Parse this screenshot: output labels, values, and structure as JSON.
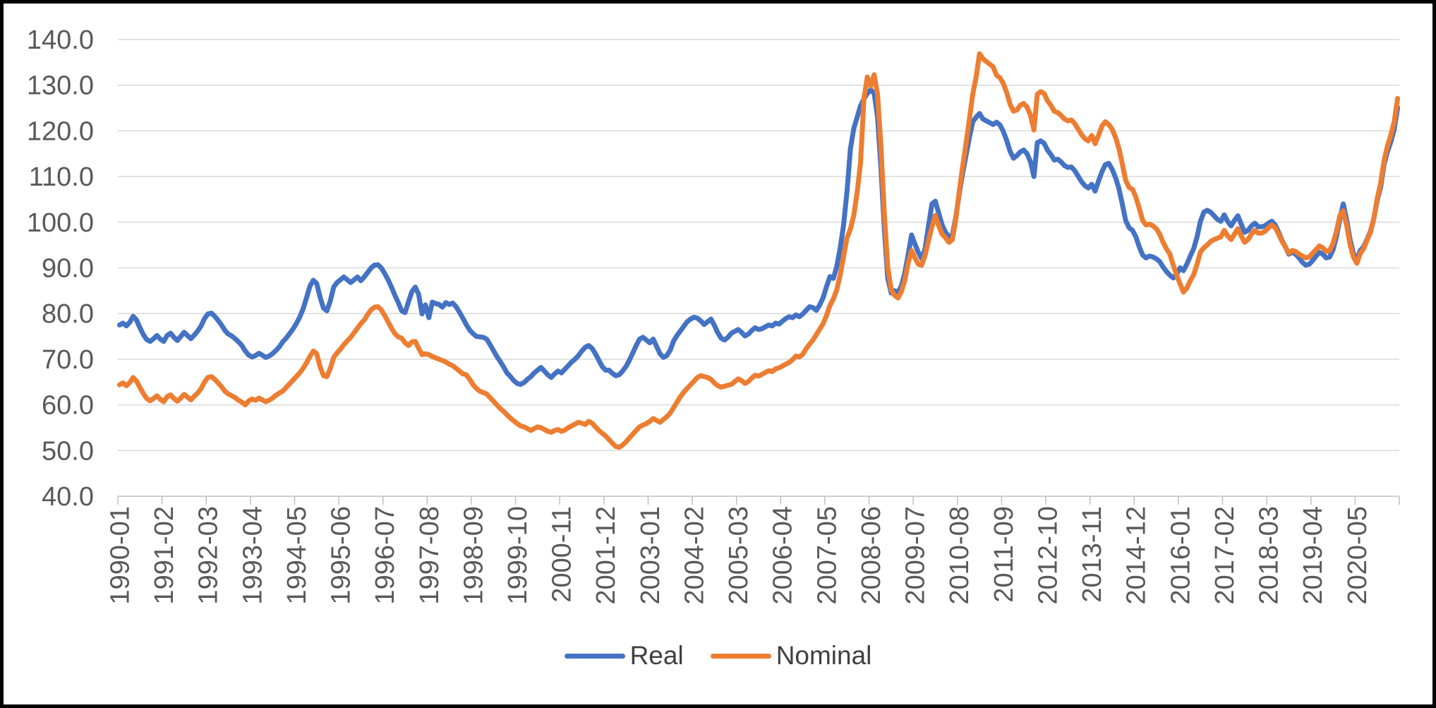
{
  "chart_data": {
    "type": "line",
    "title": "",
    "frequency": "monthly",
    "x_start": "1990-01",
    "x_end": "2021-05",
    "grid": "horizontal",
    "legend_position": "bottom",
    "ylim": [
      40,
      140
    ],
    "y_tick_step": 10,
    "y_tick_labels": [
      "140.0",
      "130.0",
      "120.0",
      "110.0",
      "100.0",
      "90.0",
      "80.0",
      "70.0",
      "60.0",
      "50.0",
      "40.0"
    ],
    "x_tick_labels": [
      "1990-01",
      "1991-02",
      "1992-03",
      "1993-04",
      "1994-05",
      "1995-06",
      "1996-07",
      "1997-08",
      "1998-09",
      "1999-10",
      "2000-11",
      "2001-12",
      "2003-01",
      "2004-02",
      "2005-03",
      "2006-04",
      "2007-05",
      "2008-06",
      "2009-07",
      "2010-08",
      "2011-09",
      "2012-10",
      "2013-11",
      "2014-12",
      "2016-01",
      "2017-02",
      "2018-03",
      "2019-04",
      "2020-05"
    ],
    "x_label_interval_months": 13,
    "series": [
      {
        "name": "Real",
        "color": "#4472C4",
        "values": [
          77.5,
          77.9,
          77.3,
          78.1,
          79.4,
          78.6,
          76.9,
          75.4,
          74.3,
          73.9,
          74.5,
          75.2,
          74.4,
          73.9,
          75.2,
          75.7,
          74.8,
          74.1,
          75.0,
          75.9,
          75.2,
          74.5,
          75.3,
          76.2,
          77.3,
          78.9,
          79.9,
          80.1,
          79.4,
          78.5,
          77.5,
          76.3,
          75.5,
          75.1,
          74.5,
          73.8,
          73.0,
          71.8,
          70.9,
          70.5,
          70.8,
          71.3,
          70.9,
          70.4,
          70.7,
          71.2,
          71.9,
          72.7,
          73.8,
          74.6,
          75.6,
          76.6,
          77.8,
          79.2,
          81.0,
          83.4,
          86.0,
          87.3,
          86.6,
          83.6,
          81.2,
          80.6,
          82.8,
          85.8,
          86.8,
          87.4,
          88.0,
          87.4,
          86.8,
          87.4,
          88.0,
          87.2,
          88.0,
          89.0,
          90.0,
          90.6,
          90.7,
          90.0,
          88.8,
          87.4,
          85.8,
          84.0,
          82.4,
          80.6,
          80.2,
          82.6,
          84.8,
          85.8,
          84.2,
          79.9,
          81.9,
          79.1,
          82.5,
          82.2,
          82.0,
          81.4,
          82.4,
          82.0,
          82.3,
          81.5,
          80.3,
          79.0,
          77.6,
          76.4,
          75.6,
          75.0,
          74.9,
          74.8,
          74.4,
          73.2,
          71.9,
          70.6,
          69.5,
          68.3,
          67.0,
          66.2,
          65.3,
          64.7,
          64.5,
          64.9,
          65.6,
          66.2,
          67.0,
          67.6,
          68.2,
          67.4,
          66.6,
          66.0,
          66.8,
          67.4,
          67.0,
          67.8,
          68.6,
          69.4,
          70.0,
          70.8,
          71.8,
          72.6,
          73.0,
          72.4,
          71.2,
          69.8,
          68.4,
          67.6,
          67.6,
          66.9,
          66.4,
          66.6,
          67.4,
          68.4,
          69.8,
          71.4,
          73.0,
          74.4,
          74.8,
          74.2,
          73.6,
          74.4,
          72.8,
          71.2,
          70.4,
          70.8,
          72.0,
          74.0,
          75.2,
          76.2,
          77.2,
          78.2,
          78.8,
          79.2,
          79.0,
          78.4,
          77.6,
          78.2,
          78.8,
          77.4,
          75.8,
          74.6,
          74.2,
          74.8,
          75.7,
          76.1,
          76.5,
          75.9,
          75.1,
          75.5,
          76.3,
          76.9,
          76.5,
          76.7,
          77.1,
          77.5,
          77.3,
          77.9,
          77.7,
          78.3,
          78.9,
          79.3,
          79.1,
          79.7,
          79.3,
          79.9,
          80.7,
          81.5,
          81.3,
          80.7,
          81.9,
          83.5,
          85.9,
          88.1,
          87.7,
          90.3,
          94.3,
          99.3,
          106.5,
          116.0,
          120.5,
          123.0,
          125.5,
          127.0,
          128.2,
          129.0,
          128.2,
          123.0,
          112.0,
          98.5,
          87.8,
          84.5,
          85.0,
          84.6,
          86.0,
          88.8,
          92.8,
          97.2,
          95.2,
          93.4,
          92.0,
          94.2,
          99.2,
          104.0,
          104.6,
          102.0,
          99.4,
          97.8,
          96.8,
          97.2,
          101.0,
          106.0,
          110.5,
          114.5,
          118.5,
          122.0,
          123.0,
          123.8,
          122.6,
          122.2,
          121.8,
          121.4,
          121.9,
          121.3,
          119.9,
          117.9,
          115.5,
          114.0,
          114.6,
          115.4,
          115.8,
          115.0,
          113.2,
          110.0,
          117.4,
          117.8,
          117.3,
          115.8,
          114.8,
          113.6,
          113.8,
          113.2,
          112.4,
          112.0,
          112.1,
          111.3,
          110.1,
          108.9,
          108.0,
          107.5,
          108.3,
          106.8,
          109.0,
          111.0,
          112.6,
          112.9,
          111.6,
          109.8,
          107.4,
          104.0,
          100.4,
          98.8,
          98.2,
          96.8,
          94.6,
          92.8,
          92.2,
          92.6,
          92.4,
          92.0,
          91.4,
          90.2,
          89.2,
          88.4,
          87.8,
          88.6,
          90.0,
          89.4,
          90.8,
          92.6,
          94.2,
          96.8,
          100.2,
          102.2,
          102.6,
          102.2,
          101.4,
          100.6,
          100.2,
          101.6,
          100.2,
          99.2,
          100.4,
          101.4,
          99.6,
          97.8,
          98.2,
          99.2,
          99.8,
          99.0,
          99.0,
          99.2,
          99.8,
          100.2,
          99.4,
          97.8,
          96.0,
          94.6,
          93.0,
          93.4,
          93.0,
          92.2,
          91.2,
          90.6,
          90.8,
          91.6,
          92.6,
          93.4,
          93.0,
          92.2,
          92.4,
          94.0,
          96.8,
          100.6,
          104.0,
          100.6,
          96.2,
          93.2,
          91.6,
          93.8,
          94.6,
          96.2,
          98.0,
          100.8,
          104.8,
          107.6,
          112.6,
          115.4,
          117.6,
          120.4,
          125.1
        ]
      },
      {
        "name": "Nominal",
        "color": "#ED7D31",
        "values": [
          64.4,
          64.8,
          64.2,
          64.9,
          66.0,
          65.2,
          63.8,
          62.5,
          61.4,
          60.9,
          61.4,
          62.0,
          61.2,
          60.7,
          61.8,
          62.2,
          61.4,
          60.8,
          61.5,
          62.3,
          61.7,
          61.1,
          61.9,
          62.6,
          63.6,
          65.0,
          66.0,
          66.2,
          65.6,
          64.8,
          64.0,
          63.0,
          62.4,
          62.0,
          61.6,
          61.0,
          60.6,
          60.0,
          60.9,
          61.3,
          61.0,
          61.5,
          61.1,
          60.7,
          61.0,
          61.5,
          62.1,
          62.6,
          63.0,
          63.8,
          64.6,
          65.4,
          66.2,
          67.0,
          68.0,
          69.2,
          70.6,
          71.8,
          71.2,
          68.4,
          66.4,
          66.2,
          68.0,
          70.4,
          71.4,
          72.2,
          73.2,
          74.0,
          74.8,
          75.8,
          76.8,
          77.8,
          78.6,
          79.8,
          80.8,
          81.4,
          81.5,
          80.8,
          79.6,
          78.2,
          76.8,
          75.6,
          74.9,
          74.6,
          73.6,
          73.0,
          73.8,
          73.9,
          72.4,
          71.0,
          71.2,
          71.0,
          70.6,
          70.3,
          70.0,
          69.7,
          69.4,
          68.9,
          68.6,
          68.0,
          67.4,
          66.8,
          66.6,
          65.6,
          64.4,
          63.6,
          63.0,
          62.7,
          62.4,
          61.6,
          60.8,
          60.0,
          59.2,
          58.6,
          57.8,
          57.1,
          56.5,
          55.9,
          55.4,
          55.2,
          54.8,
          54.4,
          54.8,
          55.2,
          55.0,
          54.6,
          54.2,
          54.0,
          54.4,
          54.6,
          54.2,
          54.5,
          55.0,
          55.4,
          55.8,
          56.2,
          56.0,
          55.7,
          56.4,
          56.0,
          55.2,
          54.4,
          53.8,
          53.2,
          52.4,
          51.6,
          50.9,
          50.7,
          51.2,
          51.9,
          52.8,
          53.6,
          54.4,
          55.2,
          55.6,
          55.9,
          56.4,
          57.0,
          56.6,
          56.2,
          56.8,
          57.4,
          58.2,
          59.4,
          60.6,
          61.8,
          62.8,
          63.6,
          64.4,
          65.2,
          66.0,
          66.4,
          66.2,
          66.0,
          65.6,
          64.8,
          64.2,
          63.9,
          64.1,
          64.3,
          64.5,
          65.1,
          65.7,
          65.3,
          64.7,
          65.1,
          65.9,
          66.5,
          66.3,
          66.7,
          67.1,
          67.5,
          67.3,
          67.9,
          68.1,
          68.5,
          68.9,
          69.3,
          69.9,
          70.7,
          70.5,
          71.1,
          72.3,
          73.3,
          74.2,
          75.4,
          76.6,
          77.8,
          79.6,
          81.8,
          83.2,
          85.2,
          88.4,
          92.4,
          96.5,
          98.5,
          101.5,
          106.5,
          113.0,
          127.0,
          131.8,
          129.8,
          132.3,
          128.0,
          116.5,
          102.0,
          90.2,
          85.2,
          84.0,
          83.4,
          84.8,
          87.2,
          91.0,
          93.8,
          92.2,
          90.8,
          90.6,
          92.8,
          96.0,
          99.0,
          101.5,
          99.2,
          97.4,
          96.6,
          95.6,
          96.2,
          100.5,
          106.5,
          112.0,
          117.0,
          122.5,
          128.0,
          131.8,
          136.9,
          135.8,
          135.2,
          134.6,
          134.0,
          132.2,
          131.6,
          130.4,
          128.4,
          125.8,
          124.3,
          124.6,
          125.6,
          126.0,
          125.2,
          123.4,
          120.2,
          128.0,
          128.6,
          128.2,
          126.6,
          125.6,
          124.3,
          124.0,
          123.4,
          122.6,
          122.2,
          122.4,
          121.6,
          120.4,
          119.2,
          118.3,
          117.8,
          119.0,
          117.2,
          119.0,
          121.0,
          122.0,
          121.4,
          120.4,
          118.6,
          116.2,
          112.8,
          109.2,
          107.6,
          107.2,
          105.5,
          103.0,
          100.4,
          99.4,
          99.6,
          99.2,
          98.6,
          97.4,
          95.6,
          94.2,
          93.0,
          90.6,
          88.4,
          86.5,
          84.7,
          85.6,
          87.2,
          88.5,
          90.8,
          93.5,
          94.4,
          95.0,
          95.8,
          96.2,
          96.5,
          96.8,
          98.2,
          97.0,
          96.2,
          97.4,
          98.6,
          97.0,
          95.6,
          96.2,
          97.4,
          98.2,
          97.6,
          97.6,
          98.0,
          98.8,
          99.4,
          98.8,
          97.4,
          95.8,
          94.6,
          93.2,
          93.8,
          93.6,
          93.0,
          92.6,
          92.2,
          92.4,
          93.2,
          94.0,
          94.8,
          94.4,
          93.6,
          93.8,
          95.4,
          98.0,
          101.4,
          102.5,
          99.4,
          95.1,
          92.4,
          91.0,
          93.1,
          94.2,
          96.0,
          97.8,
          100.8,
          105.2,
          108.5,
          113.4,
          116.6,
          119.1,
          122.0,
          127.1
        ]
      }
    ],
    "colors": {
      "gridline": "#D9D9D9",
      "axis_line": "#C0C0C0",
      "tick_mark": "#C0C0C0",
      "axis_label": "#595959",
      "legend_text": "#404040",
      "background": "#FFFFFF",
      "border": "#000000"
    }
  }
}
